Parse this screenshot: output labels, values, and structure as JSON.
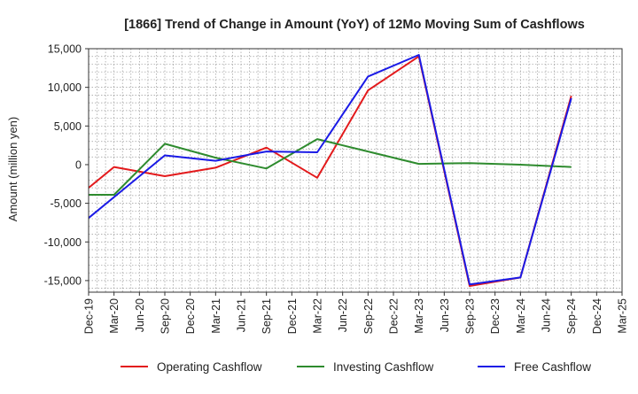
{
  "chart_data": {
    "type": "line",
    "title": "[1866]  Trend of Change in Amount (YoY) of 12Mo Moving Sum of Cashflows",
    "xlabel": "",
    "ylabel": "Amount (million yen)",
    "ylim": [
      -16500,
      15000
    ],
    "yticks": [
      15000,
      10000,
      5000,
      0,
      -5000,
      -10000,
      -15000
    ],
    "ytick_labels": [
      "15,000",
      "10,000",
      "5,000",
      "0",
      "-5,000",
      "-10,000",
      "-15,000"
    ],
    "categories": [
      "Dec-19",
      "Mar-20",
      "Jun-20",
      "Sep-20",
      "Dec-20",
      "Mar-21",
      "Jun-21",
      "Sep-21",
      "Dec-21",
      "Mar-22",
      "Jun-22",
      "Sep-22",
      "Dec-22",
      "Mar-23",
      "Jun-23",
      "Sep-23",
      "Dec-23",
      "Mar-24",
      "Jun-24",
      "Sep-24",
      "Dec-24",
      "Mar-25"
    ],
    "grid": true,
    "legend_position": "bottom",
    "series": [
      {
        "name": "Operating Cashflow",
        "color": "#e31a1c",
        "values": [
          -3000,
          -300,
          null,
          -1500,
          null,
          -400,
          null,
          2200,
          null,
          -1700,
          null,
          9600,
          null,
          14000,
          null,
          -15700,
          null,
          -14600,
          null,
          8900,
          null,
          null
        ]
      },
      {
        "name": "Investing Cashflow",
        "color": "#2e8b2e",
        "values": [
          -3900,
          -3900,
          null,
          2700,
          null,
          900,
          null,
          -500,
          null,
          3300,
          null,
          1700,
          null,
          100,
          null,
          200,
          null,
          0,
          null,
          -300,
          null,
          null
        ]
      },
      {
        "name": "Free Cashflow",
        "color": "#1a1ae6",
        "values": [
          -6900,
          -4200,
          null,
          1200,
          null,
          500,
          null,
          1700,
          null,
          1600,
          null,
          11400,
          null,
          14200,
          null,
          -15500,
          null,
          -14600,
          null,
          8600,
          null,
          null
        ]
      }
    ]
  }
}
